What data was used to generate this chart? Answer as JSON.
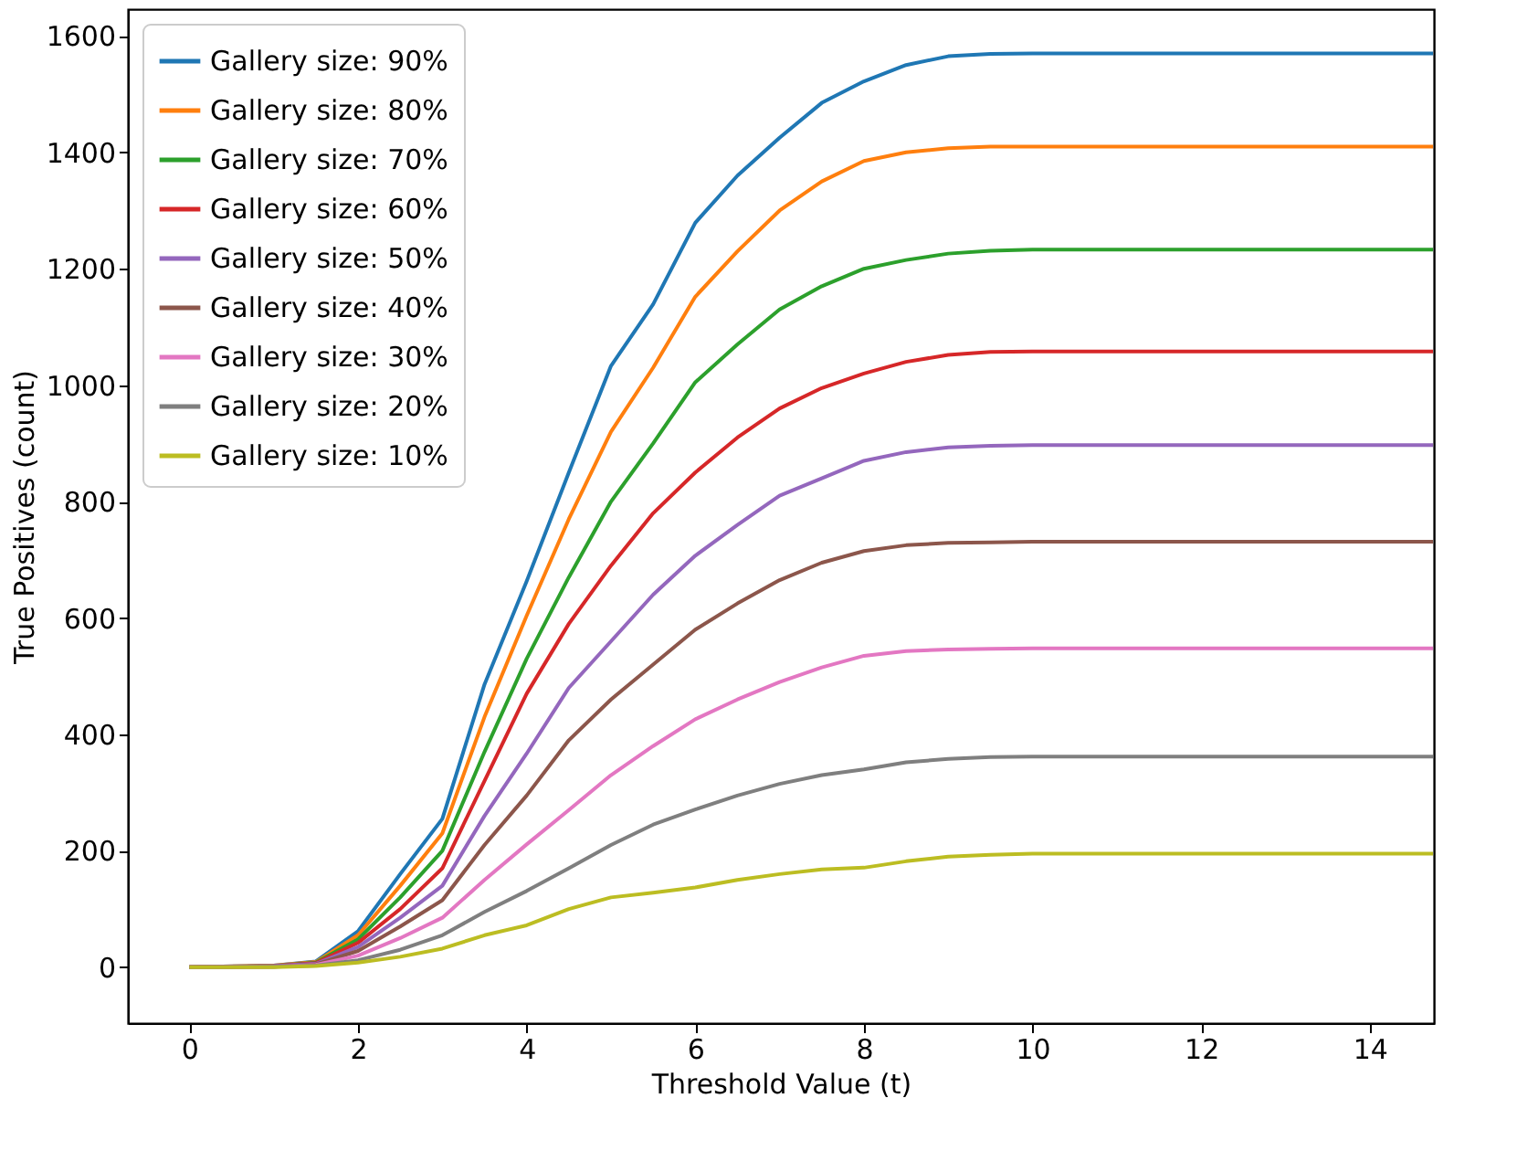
{
  "chart_data": {
    "type": "line",
    "xlabel": "Threshold Value (t)",
    "ylabel": "True Positives (count)",
    "x": [
      0,
      1,
      1.5,
      2,
      2.5,
      3,
      3.5,
      4,
      4.5,
      5,
      5.5,
      6,
      6.5,
      7,
      7.5,
      8,
      8.5,
      9,
      9.5,
      10,
      12,
      14.75
    ],
    "xlim": [
      -0.73,
      14.76
    ],
    "xticks": [
      0,
      2,
      4,
      6,
      8,
      10,
      12,
      14
    ],
    "ylim": [
      -96,
      1646
    ],
    "yticks": [
      0,
      200,
      400,
      600,
      800,
      1000,
      1200,
      1400,
      1600
    ],
    "grid": false,
    "legend": "top left",
    "line_style": "solid",
    "marker": "none",
    "series": [
      {
        "name": "Gallery size: 90%",
        "color": "#1f77b4",
        "values": [
          0,
          3,
          10,
          62,
          160,
          255,
          486,
          663,
          850,
          1033,
          1139,
          1279,
          1360,
          1425,
          1485,
          1522,
          1550,
          1565,
          1569,
          1570,
          1570,
          1570
        ]
      },
      {
        "name": "Gallery size: 80%",
        "color": "#ff7f0e",
        "values": [
          0,
          3,
          9,
          55,
          140,
          230,
          430,
          604,
          770,
          920,
          1030,
          1152,
          1230,
          1300,
          1350,
          1385,
          1400,
          1407,
          1410,
          1410,
          1410,
          1410
        ]
      },
      {
        "name": "Gallery size: 70%",
        "color": "#2ca02c",
        "values": [
          0,
          2,
          8,
          48,
          120,
          200,
          370,
          530,
          670,
          800,
          900,
          1005,
          1070,
          1130,
          1170,
          1200,
          1215,
          1226,
          1231,
          1233,
          1233,
          1233
        ]
      },
      {
        "name": "Gallery size: 60%",
        "color": "#d62728",
        "values": [
          0,
          2,
          7,
          42,
          100,
          170,
          320,
          470,
          590,
          690,
          780,
          850,
          910,
          960,
          995,
          1020,
          1040,
          1052,
          1057,
          1058,
          1058,
          1058
        ]
      },
      {
        "name": "Gallery size: 50%",
        "color": "#9467bd",
        "values": [
          0,
          2,
          6,
          35,
          85,
          140,
          260,
          367,
          480,
          560,
          640,
          707,
          760,
          810,
          840,
          870,
          885,
          893,
          896,
          897,
          897,
          897
        ]
      },
      {
        "name": "Gallery size: 40%",
        "color": "#8c564b",
        "values": [
          0,
          1,
          5,
          28,
          70,
          115,
          210,
          295,
          390,
          460,
          520,
          580,
          625,
          665,
          695,
          715,
          725,
          729,
          730,
          731,
          731,
          731
        ]
      },
      {
        "name": "Gallery size: 30%",
        "color": "#e377c2",
        "values": [
          0,
          1,
          4,
          20,
          50,
          85,
          150,
          211,
          270,
          330,
          380,
          426,
          460,
          490,
          515,
          535,
          543,
          546,
          547,
          548,
          548,
          548
        ]
      },
      {
        "name": "Gallery size: 20%",
        "color": "#7f7f7f",
        "values": [
          0,
          1,
          3,
          12,
          30,
          55,
          95,
          131,
          170,
          210,
          245,
          271,
          295,
          315,
          330,
          340,
          352,
          358,
          361,
          362,
          362,
          362
        ]
      },
      {
        "name": "Gallery size: 10%",
        "color": "#bcbd22",
        "values": [
          0,
          0,
          2,
          8,
          18,
          32,
          55,
          72,
          100,
          120,
          128,
          137,
          150,
          160,
          168,
          171,
          182,
          190,
          193,
          195,
          195,
          195
        ]
      }
    ]
  }
}
